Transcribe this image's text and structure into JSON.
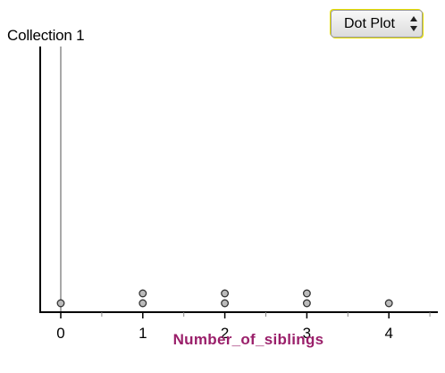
{
  "collection": {
    "title": "Collection 1"
  },
  "plot_type_select": {
    "selected": "Dot Plot",
    "icon": "up-down-stepper-icon"
  },
  "colors": {
    "axis": "#000000",
    "axis_title": "#9a1f6a",
    "dot_fill": "#bbbbbb",
    "dot_stroke": "#333333",
    "reference_line": "#a8a8a8"
  },
  "chart_data": {
    "type": "scatter",
    "style": "dot plot",
    "xlabel": "Number_of_siblings",
    "ylabel": "",
    "xlim": [
      -0.25,
      4.55
    ],
    "x_ticks": [
      "0",
      "1",
      "2",
      "3",
      "4"
    ],
    "reference_line_x": 0,
    "counts": [
      {
        "x": 0,
        "count": 1
      },
      {
        "x": 1,
        "count": 2
      },
      {
        "x": 2,
        "count": 2
      },
      {
        "x": 3,
        "count": 2
      },
      {
        "x": 4,
        "count": 1
      }
    ]
  }
}
